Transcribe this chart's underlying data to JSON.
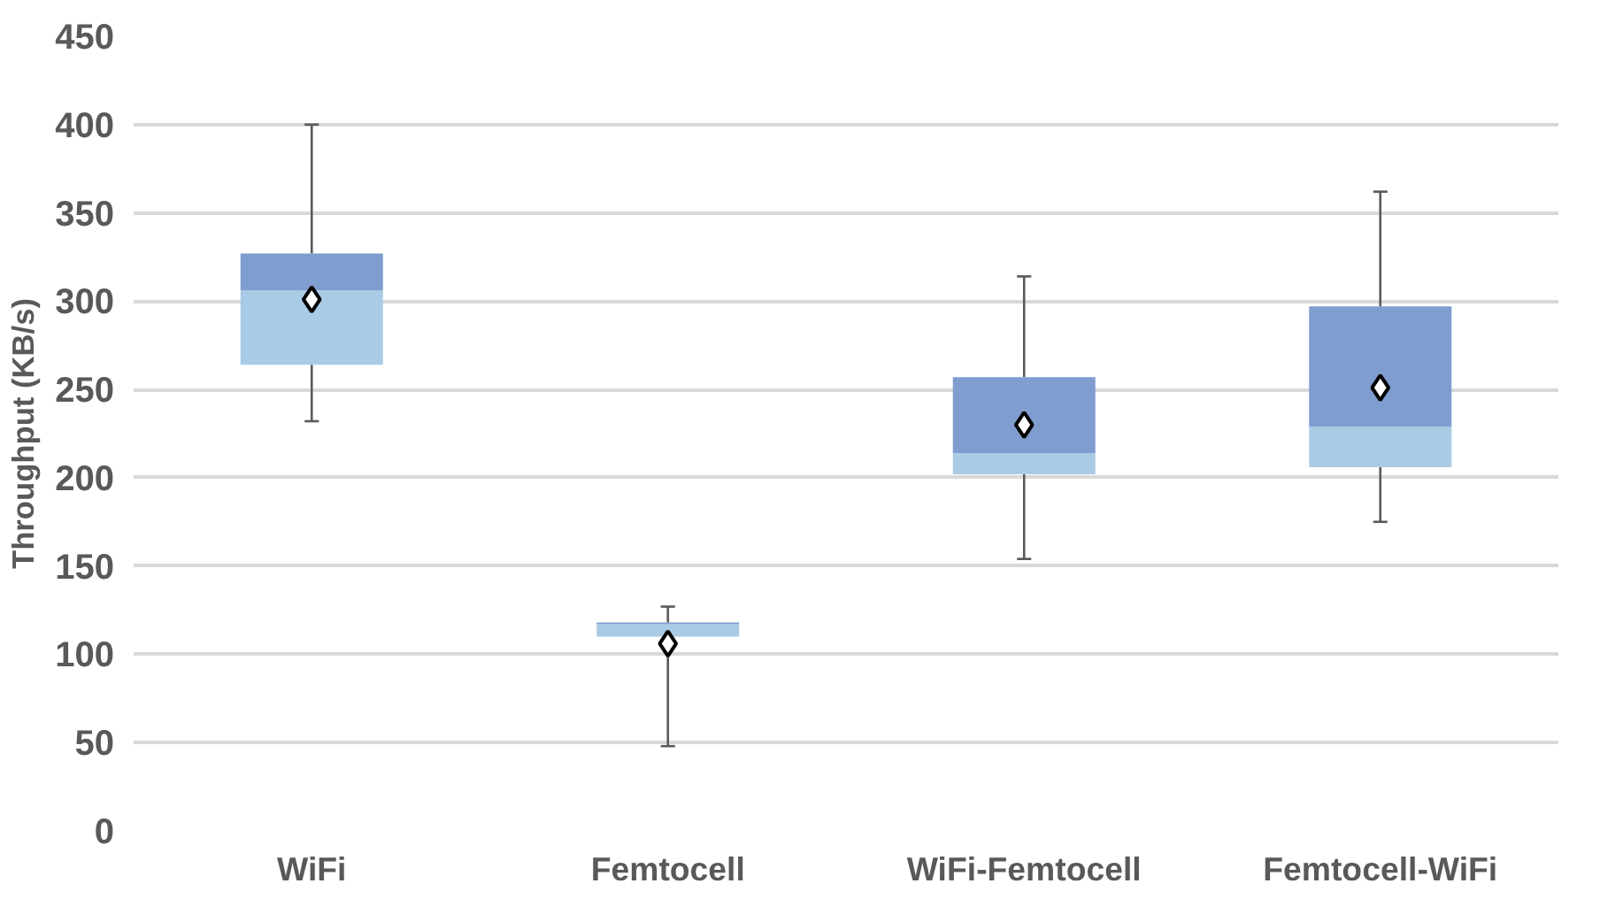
{
  "chart_data": {
    "type": "box",
    "ylabel": "Throughput (KB/s)",
    "categories": [
      "WiFi",
      "Femtocell",
      "WiFi-Femtocell",
      "Femtocell-WiFi"
    ],
    "boxes": [
      {
        "low": 232,
        "q1": 264,
        "median": 306,
        "q3": 327,
        "high": 400,
        "mean": 301
      },
      {
        "low": 48,
        "q1": 110,
        "median": 117,
        "q3": 118,
        "high": 127,
        "mean": 106
      },
      {
        "low": 154,
        "q1": 202,
        "median": 214,
        "q3": 257,
        "high": 314,
        "mean": 230
      },
      {
        "low": 175,
        "q1": 206,
        "median": 229,
        "q3": 297,
        "high": 362,
        "mean": 251
      }
    ],
    "colors": [
      [
        "#a9cbe6",
        "#7f9dcf"
      ],
      [
        "#a9cbe6",
        "#7f9dcf"
      ],
      [
        "#a9cbe6",
        "#7f9dcf"
      ],
      [
        "#a9cbe6",
        "#7f9dcf"
      ]
    ],
    "ylim": [
      0,
      450
    ],
    "yticks": [
      0,
      50,
      100,
      150,
      200,
      250,
      300,
      350,
      400,
      450
    ],
    "grid": "y",
    "marker": "diamond"
  }
}
